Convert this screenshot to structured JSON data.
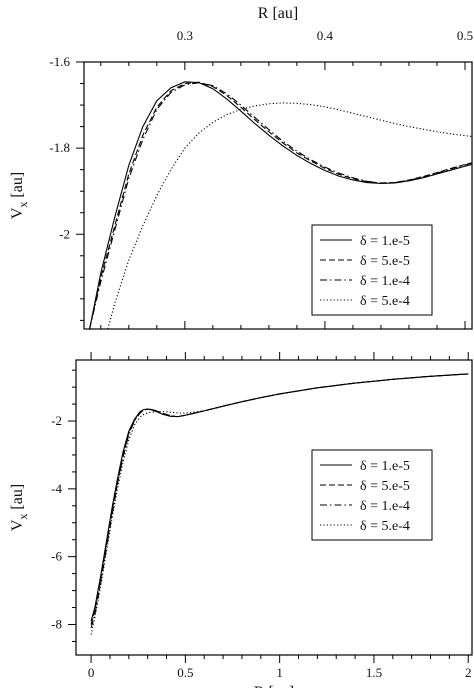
{
  "chart_data": [
    {
      "type": "line",
      "xlabel": "R [au]",
      "ylabel": "V",
      "ylabel_sub": "x",
      "ylabel_unit": "[au]",
      "x_axis_position": "top",
      "xlim": [
        0.228,
        0.505
      ],
      "ylim": [
        -2.22,
        -1.6
      ],
      "x_ticks": [
        0.3,
        0.4,
        0.5
      ],
      "x_tick_labels": [
        "0.3",
        "0.4",
        "0.5"
      ],
      "y_ticks": [
        -1.6,
        -1.8,
        -2.0
      ],
      "y_tick_labels": [
        "-1.6",
        "-1.8",
        "-2"
      ],
      "legend": {
        "position": "lower-right"
      },
      "series": [
        {
          "name": "δ = 1.e-5",
          "dash": "solid",
          "x": [
            0.232,
            0.24,
            0.25,
            0.26,
            0.27,
            0.28,
            0.29,
            0.3,
            0.31,
            0.32,
            0.33,
            0.34,
            0.35,
            0.36,
            0.37,
            0.38,
            0.39,
            0.4,
            0.41,
            0.42,
            0.43,
            0.44,
            0.45,
            0.46,
            0.47,
            0.48,
            0.49,
            0.5,
            0.505
          ],
          "y": [
            -2.22,
            -2.09,
            -1.96,
            -1.84,
            -1.75,
            -1.69,
            -1.66,
            -1.646,
            -1.648,
            -1.662,
            -1.686,
            -1.714,
            -1.743,
            -1.77,
            -1.795,
            -1.817,
            -1.836,
            -1.852,
            -1.865,
            -1.874,
            -1.88,
            -1.882,
            -1.881,
            -1.876,
            -1.869,
            -1.86,
            -1.851,
            -1.842,
            -1.838
          ]
        },
        {
          "name": "δ = 5.e-5",
          "dash": "dashed",
          "x": [
            0.232,
            0.24,
            0.25,
            0.26,
            0.27,
            0.28,
            0.29,
            0.3,
            0.31,
            0.32,
            0.33,
            0.34,
            0.35,
            0.36,
            0.37,
            0.38,
            0.39,
            0.4,
            0.41,
            0.42,
            0.43,
            0.44,
            0.45,
            0.46,
            0.47,
            0.48,
            0.49,
            0.5,
            0.505
          ],
          "y": [
            -2.22,
            -2.1,
            -1.98,
            -1.86,
            -1.77,
            -1.705,
            -1.667,
            -1.65,
            -1.647,
            -1.657,
            -1.678,
            -1.705,
            -1.734,
            -1.762,
            -1.788,
            -1.811,
            -1.83,
            -1.847,
            -1.861,
            -1.871,
            -1.878,
            -1.881,
            -1.88,
            -1.874,
            -1.866,
            -1.857,
            -1.847,
            -1.838,
            -1.834
          ]
        },
        {
          "name": "δ = 1.e-4",
          "dash": "dashdot",
          "x": [
            0.232,
            0.24,
            0.25,
            0.26,
            0.27,
            0.28,
            0.29,
            0.3,
            0.31,
            0.32,
            0.33,
            0.34,
            0.35,
            0.36,
            0.37,
            0.38,
            0.39,
            0.4,
            0.41,
            0.42,
            0.43,
            0.44,
            0.45,
            0.46,
            0.47,
            0.48,
            0.49,
            0.5,
            0.505
          ],
          "y": [
            -2.22,
            -2.11,
            -1.99,
            -1.87,
            -1.78,
            -1.71,
            -1.671,
            -1.653,
            -1.648,
            -1.655,
            -1.674,
            -1.7,
            -1.729,
            -1.757,
            -1.784,
            -1.807,
            -1.827,
            -1.844,
            -1.858,
            -1.869,
            -1.877,
            -1.881,
            -1.88,
            -1.875,
            -1.867,
            -1.858,
            -1.848,
            -1.839,
            -1.835
          ]
        },
        {
          "name": "δ = 5.e-4",
          "dash": "dotted",
          "x": [
            0.245,
            0.25,
            0.26,
            0.27,
            0.28,
            0.29,
            0.3,
            0.31,
            0.32,
            0.33,
            0.34,
            0.35,
            0.36,
            0.37,
            0.38,
            0.39,
            0.4,
            0.41,
            0.42,
            0.43,
            0.44,
            0.45,
            0.46,
            0.47,
            0.48,
            0.49,
            0.5,
            0.505
          ],
          "y": [
            -2.22,
            -2.16,
            -2.06,
            -1.98,
            -1.91,
            -1.85,
            -1.8,
            -1.765,
            -1.74,
            -1.722,
            -1.71,
            -1.702,
            -1.697,
            -1.695,
            -1.696,
            -1.699,
            -1.704,
            -1.711,
            -1.719,
            -1.727,
            -1.735,
            -1.743,
            -1.75,
            -1.756,
            -1.762,
            -1.767,
            -1.771,
            -1.773
          ]
        }
      ]
    },
    {
      "type": "line",
      "xlabel": "R [au]",
      "ylabel": "V",
      "ylabel_sub": "x",
      "ylabel_unit": "[au]",
      "x_axis_position": "bottom",
      "xlim": [
        -0.08,
        2.02
      ],
      "ylim": [
        -8.9,
        -0.2
      ],
      "x_ticks": [
        0,
        0.5,
        1,
        1.5,
        2
      ],
      "x_tick_labels": [
        "0",
        "0.5",
        "1",
        "1.5",
        "2"
      ],
      "y_ticks": [
        -2,
        -4,
        -6,
        -8
      ],
      "y_tick_labels": [
        "-2",
        "-4",
        "-6",
        "-8"
      ],
      "legend": {
        "position": "lower-right"
      },
      "series": [
        {
          "name": "δ = 1.e-5",
          "dash": "solid",
          "x": [
            0.0,
            0.02,
            0.05,
            0.08,
            0.11,
            0.14,
            0.17,
            0.2,
            0.23,
            0.26,
            0.28,
            0.3,
            0.32,
            0.35,
            0.38,
            0.42,
            0.46,
            0.5,
            0.6,
            0.7,
            0.8,
            0.9,
            1.0,
            1.2,
            1.4,
            1.6,
            1.8,
            2.0
          ],
          "y": [
            -7.9,
            -7.5,
            -6.6,
            -5.6,
            -4.6,
            -3.7,
            -2.9,
            -2.3,
            -1.95,
            -1.72,
            -1.66,
            -1.65,
            -1.67,
            -1.73,
            -1.8,
            -1.86,
            -1.87,
            -1.83,
            -1.7,
            -1.56,
            -1.43,
            -1.31,
            -1.2,
            -1.02,
            -0.88,
            -0.77,
            -0.68,
            -0.61
          ]
        },
        {
          "name": "δ = 5.e-5",
          "dash": "dashed",
          "x": [
            0.0,
            0.02,
            0.05,
            0.08,
            0.11,
            0.14,
            0.17,
            0.2,
            0.23,
            0.26,
            0.28,
            0.3,
            0.32,
            0.35,
            0.38,
            0.42,
            0.46,
            0.5,
            0.6,
            0.7,
            0.8,
            0.9,
            1.0,
            1.2,
            1.4,
            1.6,
            1.8,
            2.0
          ],
          "y": [
            -8.0,
            -7.6,
            -6.7,
            -5.7,
            -4.7,
            -3.8,
            -3.0,
            -2.35,
            -1.98,
            -1.74,
            -1.67,
            -1.65,
            -1.66,
            -1.71,
            -1.78,
            -1.85,
            -1.87,
            -1.83,
            -1.7,
            -1.56,
            -1.43,
            -1.31,
            -1.2,
            -1.02,
            -0.88,
            -0.77,
            -0.68,
            -0.61
          ]
        },
        {
          "name": "δ = 1.e-4",
          "dash": "dashdot",
          "x": [
            0.0,
            0.02,
            0.05,
            0.08,
            0.11,
            0.14,
            0.17,
            0.2,
            0.23,
            0.26,
            0.28,
            0.3,
            0.32,
            0.35,
            0.38,
            0.42,
            0.46,
            0.5,
            0.6,
            0.7,
            0.8,
            0.9,
            1.0,
            1.2,
            1.4,
            1.6,
            1.8,
            2.0
          ],
          "y": [
            -8.1,
            -7.7,
            -6.8,
            -5.8,
            -4.8,
            -3.85,
            -3.05,
            -2.4,
            -2.0,
            -1.76,
            -1.68,
            -1.65,
            -1.66,
            -1.7,
            -1.77,
            -1.84,
            -1.87,
            -1.83,
            -1.7,
            -1.56,
            -1.43,
            -1.31,
            -1.2,
            -1.02,
            -0.88,
            -0.77,
            -0.68,
            -0.61
          ]
        },
        {
          "name": "δ = 5.e-4",
          "dash": "dotted",
          "x": [
            0.0,
            0.02,
            0.05,
            0.08,
            0.11,
            0.14,
            0.17,
            0.2,
            0.23,
            0.26,
            0.28,
            0.3,
            0.32,
            0.35,
            0.38,
            0.42,
            0.46,
            0.5,
            0.6,
            0.7,
            0.8,
            0.9,
            1.0,
            1.2,
            1.4,
            1.6,
            1.8,
            2.0
          ],
          "y": [
            -8.3,
            -7.8,
            -6.9,
            -5.9,
            -4.9,
            -4.0,
            -3.2,
            -2.55,
            -2.12,
            -1.88,
            -1.8,
            -1.76,
            -1.74,
            -1.72,
            -1.72,
            -1.74,
            -1.76,
            -1.77,
            -1.7,
            -1.57,
            -1.43,
            -1.31,
            -1.2,
            -1.02,
            -0.88,
            -0.77,
            -0.68,
            -0.61
          ]
        }
      ]
    }
  ]
}
